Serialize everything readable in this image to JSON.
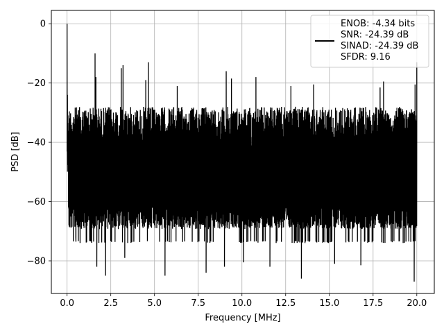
{
  "chart_data": {
    "type": "line",
    "title": "",
    "xlabel": "Frequency [MHz]",
    "ylabel": "PSD [dB]",
    "xlim": [
      -0.9,
      21.0
    ],
    "ylim": [
      -91.0,
      4.5
    ],
    "xticks": [
      0.0,
      2.5,
      5.0,
      7.5,
      10.0,
      12.5,
      15.0,
      17.5,
      20.0
    ],
    "xtick_labels": [
      "0.0",
      "2.5",
      "5.0",
      "7.5",
      "10.0",
      "12.5",
      "15.0",
      "17.5",
      "20.0"
    ],
    "yticks": [
      0,
      -20,
      -40,
      -60,
      -80
    ],
    "ytick_labels": [
      "0",
      "−20",
      "−40",
      "−60",
      "−80"
    ],
    "grid": true,
    "legend_position": "top-right",
    "legend_lines": [
      "ENOB: -4.34 bits",
      "SNR: -24.39 dB",
      "SINAD: -24.39 dB",
      "SFDR: 9.16"
    ],
    "line_color": "#000000",
    "series": [
      {
        "x_range": [
          0.0,
          20.0
        ],
        "peaks": [
          {
            "x": 0.0,
            "y": 0.0
          },
          {
            "x": 0.02,
            "y": -24.0
          },
          {
            "x": 1.6,
            "y": -10.0
          },
          {
            "x": 1.65,
            "y": -18.0
          },
          {
            "x": 3.1,
            "y": -15.0
          },
          {
            "x": 3.2,
            "y": -14.0
          },
          {
            "x": 4.65,
            "y": -13.0
          },
          {
            "x": 4.5,
            "y": -19.0
          },
          {
            "x": 6.3,
            "y": -21.0
          },
          {
            "x": 9.1,
            "y": -16.0
          },
          {
            "x": 9.4,
            "y": -18.5
          },
          {
            "x": 10.8,
            "y": -18.0
          },
          {
            "x": 12.8,
            "y": -21.0
          },
          {
            "x": 14.1,
            "y": -20.5
          },
          {
            "x": 17.9,
            "y": -21.5
          },
          {
            "x": 18.1,
            "y": -19.5
          },
          {
            "x": 19.9,
            "y": -20.5
          },
          {
            "x": 20.0,
            "y": -13.0
          }
        ],
        "troughs": [
          {
            "x": 0.5,
            "y": -72.0
          },
          {
            "x": 1.7,
            "y": -82.0
          },
          {
            "x": 2.2,
            "y": -85.0
          },
          {
            "x": 3.3,
            "y": -79.0
          },
          {
            "x": 5.6,
            "y": -85.0
          },
          {
            "x": 7.95,
            "y": -84.0
          },
          {
            "x": 9.0,
            "y": -82.0
          },
          {
            "x": 10.1,
            "y": -80.5
          },
          {
            "x": 11.6,
            "y": -82.0
          },
          {
            "x": 13.4,
            "y": -86.0
          },
          {
            "x": 15.3,
            "y": -81.0
          },
          {
            "x": 16.8,
            "y": -81.5
          },
          {
            "x": 19.85,
            "y": -87.0
          }
        ],
        "envelope_upper_db": -26.0,
        "envelope_lower_db": -66.0
      }
    ]
  }
}
